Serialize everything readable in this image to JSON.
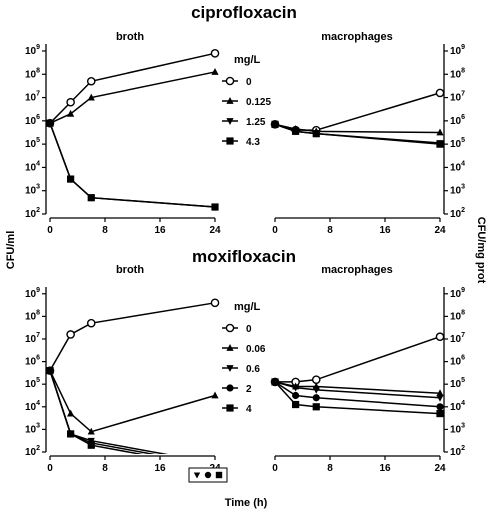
{
  "figure": {
    "ylabel_left": "CFU/ml",
    "ylabel_right": "CFU/mg prot",
    "xlabel": "Time (h)",
    "y_ticks": [
      "2",
      "3",
      "4",
      "5",
      "6",
      "7",
      "8",
      "9"
    ],
    "x_ticks": [
      "0",
      "8",
      "16",
      "24"
    ]
  },
  "chart_data": [
    {
      "type": "line",
      "title": "ciprofloxacin",
      "subtitle": "broth",
      "xlim": [
        0,
        24
      ],
      "ylim_log10": [
        2,
        9.3
      ],
      "x": [
        0,
        3,
        6,
        24
      ],
      "series": [
        {
          "name": "0",
          "marker": "open-circle",
          "values": [
            5.9,
            6.8,
            7.7,
            8.9
          ]
        },
        {
          "name": "0.125",
          "marker": "triangle-up",
          "values": [
            5.9,
            6.3,
            7.0,
            8.1
          ]
        },
        {
          "name": "1.25",
          "marker": "triangle-down",
          "values": [
            5.9,
            3.5,
            2.7,
            2.3
          ]
        },
        {
          "name": "4.3",
          "marker": "square",
          "values": [
            5.9,
            3.5,
            2.7,
            2.3
          ]
        }
      ],
      "legend_title": "mg/L",
      "legend_position": "right"
    },
    {
      "type": "line",
      "title": "",
      "subtitle": "macrophages",
      "xlim": [
        0,
        24
      ],
      "ylim_log10": [
        2,
        9.3
      ],
      "x": [
        0,
        3,
        6,
        24
      ],
      "series": [
        {
          "name": "0",
          "marker": "open-circle",
          "values": [
            5.85,
            5.6,
            5.6,
            7.2
          ]
        },
        {
          "name": "0.125",
          "marker": "triangle-up",
          "values": [
            5.85,
            5.65,
            5.55,
            5.5
          ]
        },
        {
          "name": "1.25",
          "marker": "triangle-down",
          "values": [
            5.85,
            5.55,
            5.45,
            5.05
          ]
        },
        {
          "name": "4.3",
          "marker": "square",
          "values": [
            5.85,
            5.55,
            5.45,
            5.0
          ]
        }
      ]
    },
    {
      "type": "line",
      "title": "moxifloxacin",
      "subtitle": "broth",
      "xlim": [
        0,
        24
      ],
      "ylim_log10": [
        2,
        9.3
      ],
      "x": [
        0,
        3,
        6,
        24
      ],
      "series": [
        {
          "name": "0",
          "marker": "open-circle",
          "values": [
            5.6,
            7.2,
            7.7,
            8.6
          ]
        },
        {
          "name": "0.06",
          "marker": "triangle-up",
          "values": [
            5.6,
            3.7,
            2.9,
            4.5
          ]
        },
        {
          "name": "0.6",
          "marker": "triangle-down",
          "values": [
            5.6,
            2.8,
            2.5,
            1.5
          ]
        },
        {
          "name": "2",
          "marker": "filled-circle",
          "values": [
            5.6,
            2.8,
            2.4,
            1.4
          ]
        },
        {
          "name": "4",
          "marker": "square",
          "values": [
            5.6,
            2.8,
            2.3,
            1.3
          ]
        }
      ],
      "legend_title": "mg/L",
      "legend_position": "right",
      "below_axis_markers": [
        "triangle-down",
        "filled-circle",
        "square"
      ]
    },
    {
      "type": "line",
      "title": "",
      "subtitle": "macrophages",
      "xlim": [
        0,
        24
      ],
      "ylim_log10": [
        2,
        9.3
      ],
      "x": [
        0,
        3,
        6,
        24
      ],
      "series": [
        {
          "name": "0",
          "marker": "open-circle",
          "values": [
            5.1,
            5.1,
            5.2,
            7.1
          ]
        },
        {
          "name": "0.06",
          "marker": "triangle-up",
          "values": [
            5.1,
            4.9,
            4.9,
            4.6
          ]
        },
        {
          "name": "0.6",
          "marker": "triangle-down",
          "values": [
            5.1,
            4.85,
            4.75,
            4.4
          ]
        },
        {
          "name": "2",
          "marker": "filled-circle",
          "values": [
            5.1,
            4.5,
            4.4,
            4.0
          ]
        },
        {
          "name": "4",
          "marker": "square",
          "values": [
            5.1,
            4.1,
            4.0,
            3.7
          ]
        }
      ]
    }
  ]
}
